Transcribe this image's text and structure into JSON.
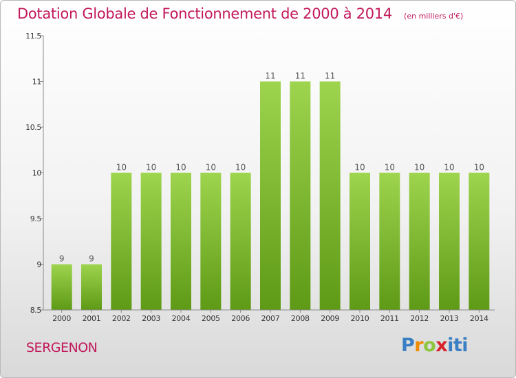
{
  "header": {
    "title": "Dotation Globale de Fonctionnement de 2000 à 2014",
    "unit": "(en milliers d'€)"
  },
  "footer": {
    "town": "SERGENON",
    "logo_text": "Proxiti"
  },
  "colors": {
    "accent": "#c2185b",
    "bar_top": "#9ed44e",
    "bar_bottom": "#5e9a16"
  },
  "chart_data": {
    "type": "bar",
    "categories": [
      "2000",
      "2001",
      "2002",
      "2003",
      "2004",
      "2005",
      "2006",
      "2007",
      "2008",
      "2009",
      "2010",
      "2011",
      "2012",
      "2013",
      "2014"
    ],
    "values": [
      9,
      9,
      10,
      10,
      10,
      10,
      10,
      11,
      11,
      11,
      10,
      10,
      10,
      10,
      10
    ],
    "data_labels": [
      "9",
      "9",
      "10",
      "10",
      "10",
      "10",
      "10",
      "11",
      "11",
      "11",
      "10",
      "10",
      "10",
      "10",
      "10"
    ],
    "ylim": [
      8.5,
      11.5
    ],
    "yticks": [
      8.5,
      9,
      9.5,
      10,
      10.5,
      11,
      11.5
    ],
    "ytick_labels": [
      "8.5",
      "9",
      "9.5",
      "10",
      "10.5",
      "11",
      "11.5"
    ],
    "grid": false,
    "legend": "none"
  }
}
